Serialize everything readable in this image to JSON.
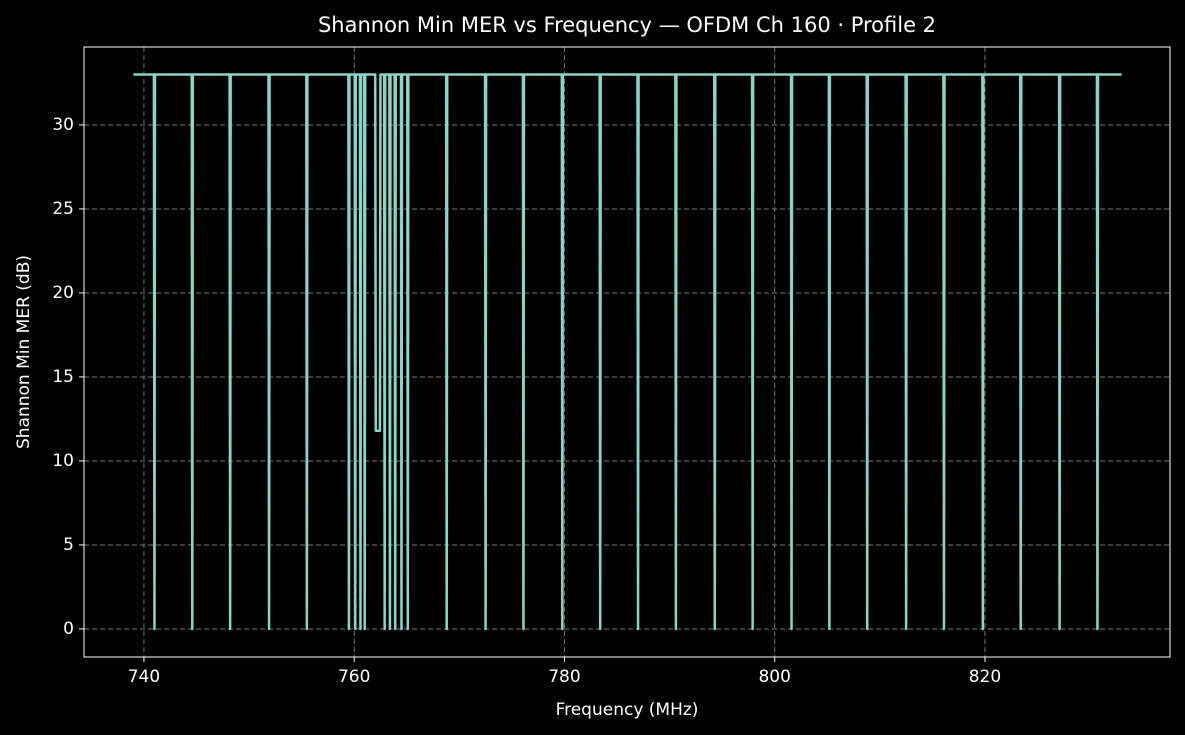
{
  "chart_data": {
    "type": "line",
    "title": "Shannon Min MER vs Frequency — OFDM Ch 160 · Profile 2",
    "x_label": "Frequency (MHz)",
    "y_label": "Shannon Min MER (dB)",
    "color": "#8dd3c7",
    "grid": true,
    "xlim": [
      734.3,
      837.6
    ],
    "ylim": [
      -1.67,
      34.64
    ],
    "xticks": [
      740,
      760,
      780,
      800,
      820
    ],
    "yticks": [
      0,
      5,
      10,
      15,
      20,
      25,
      30
    ],
    "x": [
      739.0,
      740.95,
      741.0,
      741.05,
      744.55,
      744.6,
      744.65,
      748.15,
      748.2,
      748.25,
      751.85,
      751.9,
      751.95,
      755.45,
      755.5,
      755.55,
      759.45,
      759.5,
      759.55,
      760.05,
      760.1,
      760.15,
      760.55,
      760.6,
      760.65,
      760.95,
      761.0,
      761.05,
      762.0,
      762.05,
      762.45,
      762.5,
      762.85,
      762.9,
      762.95,
      763.35,
      763.4,
      763.45,
      763.85,
      763.9,
      763.95,
      764.45,
      764.5,
      764.55,
      765.05,
      765.1,
      765.15,
      768.75,
      768.8,
      768.85,
      772.45,
      772.5,
      772.55,
      776.05,
      776.1,
      776.15,
      779.75,
      779.8,
      779.85,
      783.35,
      783.4,
      783.45,
      786.95,
      787.0,
      787.05,
      790.55,
      790.6,
      790.65,
      794.25,
      794.3,
      794.35,
      797.85,
      797.9,
      797.95,
      801.55,
      801.6,
      801.65,
      805.15,
      805.2,
      805.25,
      808.75,
      808.8,
      808.85,
      812.45,
      812.5,
      812.55,
      816.05,
      816.1,
      816.15,
      819.75,
      819.8,
      819.85,
      823.35,
      823.4,
      823.45,
      827.05,
      827.1,
      827.15,
      830.65,
      830.7,
      830.75,
      833.0
    ],
    "values": [
      33,
      33,
      0,
      33,
      33,
      0,
      33,
      33,
      0,
      33,
      33,
      0,
      33,
      33,
      0,
      33,
      33,
      0,
      33,
      33,
      0,
      33,
      33,
      0,
      33,
      33,
      0,
      33,
      33,
      11.8,
      11.8,
      33,
      33,
      0,
      33,
      33,
      0,
      33,
      33,
      0,
      33,
      33,
      0,
      33,
      33,
      0,
      33,
      33,
      0,
      33,
      33,
      0,
      33,
      33,
      0,
      33,
      33,
      0,
      33,
      33,
      0,
      33,
      33,
      0,
      33,
      33,
      0,
      33,
      33,
      0,
      33,
      33,
      0,
      33,
      33,
      0,
      33,
      33,
      0,
      33,
      33,
      0,
      33,
      33,
      0,
      33,
      33,
      0,
      33,
      33,
      0,
      33,
      33,
      0,
      33,
      33,
      0,
      33,
      33,
      0,
      33,
      33
    ]
  }
}
